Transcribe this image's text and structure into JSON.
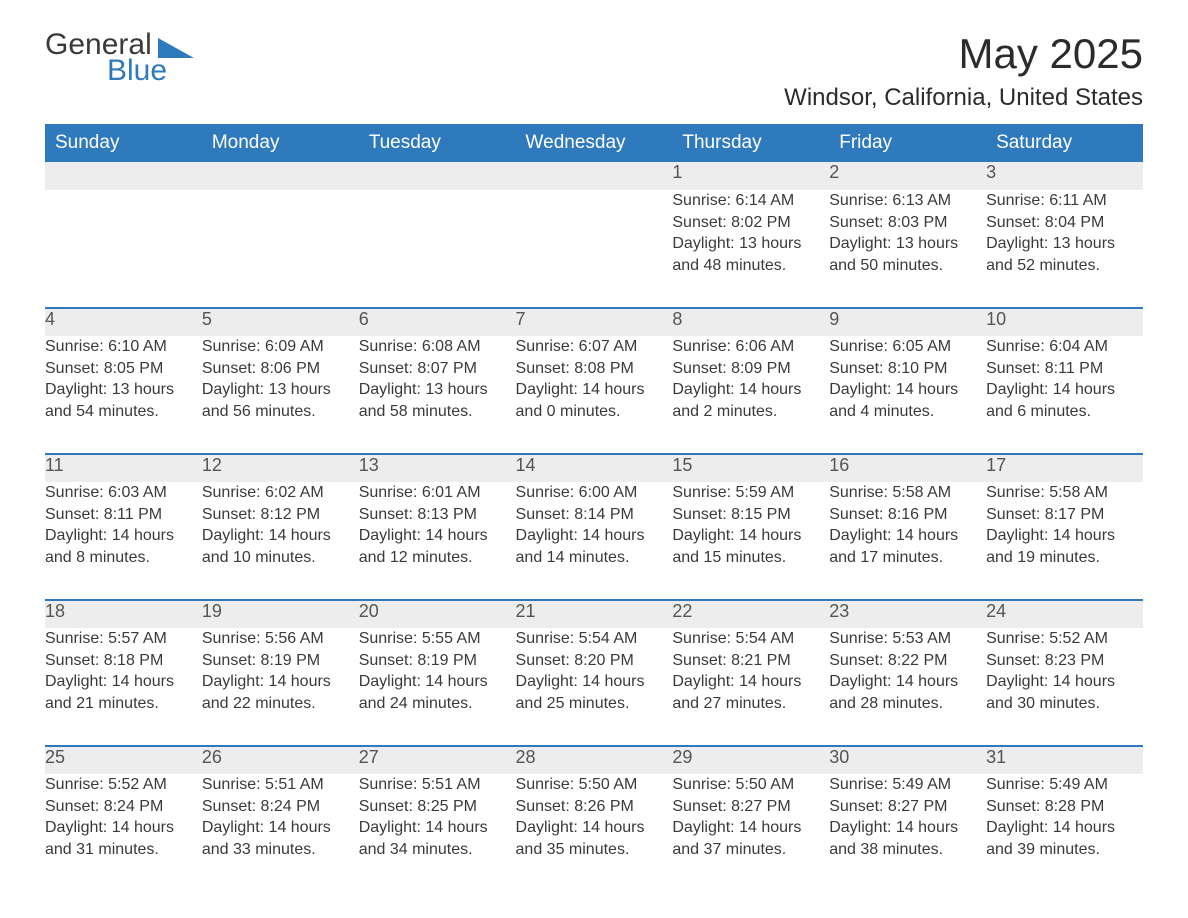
{
  "logo": {
    "text1": "General",
    "text2": "Blue"
  },
  "title": {
    "month": "May 2025",
    "location": "Windsor, California, United States"
  },
  "colors": {
    "header_bg": "#2f79bd",
    "header_text": "#ffffff",
    "daynum_bg": "#ededed",
    "row_border": "#2f79bd",
    "body_text": "#3a3a3a",
    "page_bg": "#ffffff"
  },
  "typography": {
    "title_fontsize": 42,
    "subtitle_fontsize": 24,
    "header_cell_fontsize": 19,
    "daynum_fontsize": 18,
    "body_fontsize": 16,
    "font_family": "Arial"
  },
  "weekdays": [
    "Sunday",
    "Monday",
    "Tuesday",
    "Wednesday",
    "Thursday",
    "Friday",
    "Saturday"
  ],
  "weeks": [
    [
      {
        "empty": true
      },
      {
        "empty": true
      },
      {
        "empty": true
      },
      {
        "empty": true
      },
      {
        "day": "1",
        "sunrise": "Sunrise: 6:14 AM",
        "sunset": "Sunset: 8:02 PM",
        "dl1": "Daylight: 13 hours",
        "dl2": "and 48 minutes."
      },
      {
        "day": "2",
        "sunrise": "Sunrise: 6:13 AM",
        "sunset": "Sunset: 8:03 PM",
        "dl1": "Daylight: 13 hours",
        "dl2": "and 50 minutes."
      },
      {
        "day": "3",
        "sunrise": "Sunrise: 6:11 AM",
        "sunset": "Sunset: 8:04 PM",
        "dl1": "Daylight: 13 hours",
        "dl2": "and 52 minutes."
      }
    ],
    [
      {
        "day": "4",
        "sunrise": "Sunrise: 6:10 AM",
        "sunset": "Sunset: 8:05 PM",
        "dl1": "Daylight: 13 hours",
        "dl2": "and 54 minutes."
      },
      {
        "day": "5",
        "sunrise": "Sunrise: 6:09 AM",
        "sunset": "Sunset: 8:06 PM",
        "dl1": "Daylight: 13 hours",
        "dl2": "and 56 minutes."
      },
      {
        "day": "6",
        "sunrise": "Sunrise: 6:08 AM",
        "sunset": "Sunset: 8:07 PM",
        "dl1": "Daylight: 13 hours",
        "dl2": "and 58 minutes."
      },
      {
        "day": "7",
        "sunrise": "Sunrise: 6:07 AM",
        "sunset": "Sunset: 8:08 PM",
        "dl1": "Daylight: 14 hours",
        "dl2": "and 0 minutes."
      },
      {
        "day": "8",
        "sunrise": "Sunrise: 6:06 AM",
        "sunset": "Sunset: 8:09 PM",
        "dl1": "Daylight: 14 hours",
        "dl2": "and 2 minutes."
      },
      {
        "day": "9",
        "sunrise": "Sunrise: 6:05 AM",
        "sunset": "Sunset: 8:10 PM",
        "dl1": "Daylight: 14 hours",
        "dl2": "and 4 minutes."
      },
      {
        "day": "10",
        "sunrise": "Sunrise: 6:04 AM",
        "sunset": "Sunset: 8:11 PM",
        "dl1": "Daylight: 14 hours",
        "dl2": "and 6 minutes."
      }
    ],
    [
      {
        "day": "11",
        "sunrise": "Sunrise: 6:03 AM",
        "sunset": "Sunset: 8:11 PM",
        "dl1": "Daylight: 14 hours",
        "dl2": "and 8 minutes."
      },
      {
        "day": "12",
        "sunrise": "Sunrise: 6:02 AM",
        "sunset": "Sunset: 8:12 PM",
        "dl1": "Daylight: 14 hours",
        "dl2": "and 10 minutes."
      },
      {
        "day": "13",
        "sunrise": "Sunrise: 6:01 AM",
        "sunset": "Sunset: 8:13 PM",
        "dl1": "Daylight: 14 hours",
        "dl2": "and 12 minutes."
      },
      {
        "day": "14",
        "sunrise": "Sunrise: 6:00 AM",
        "sunset": "Sunset: 8:14 PM",
        "dl1": "Daylight: 14 hours",
        "dl2": "and 14 minutes."
      },
      {
        "day": "15",
        "sunrise": "Sunrise: 5:59 AM",
        "sunset": "Sunset: 8:15 PM",
        "dl1": "Daylight: 14 hours",
        "dl2": "and 15 minutes."
      },
      {
        "day": "16",
        "sunrise": "Sunrise: 5:58 AM",
        "sunset": "Sunset: 8:16 PM",
        "dl1": "Daylight: 14 hours",
        "dl2": "and 17 minutes."
      },
      {
        "day": "17",
        "sunrise": "Sunrise: 5:58 AM",
        "sunset": "Sunset: 8:17 PM",
        "dl1": "Daylight: 14 hours",
        "dl2": "and 19 minutes."
      }
    ],
    [
      {
        "day": "18",
        "sunrise": "Sunrise: 5:57 AM",
        "sunset": "Sunset: 8:18 PM",
        "dl1": "Daylight: 14 hours",
        "dl2": "and 21 minutes."
      },
      {
        "day": "19",
        "sunrise": "Sunrise: 5:56 AM",
        "sunset": "Sunset: 8:19 PM",
        "dl1": "Daylight: 14 hours",
        "dl2": "and 22 minutes."
      },
      {
        "day": "20",
        "sunrise": "Sunrise: 5:55 AM",
        "sunset": "Sunset: 8:19 PM",
        "dl1": "Daylight: 14 hours",
        "dl2": "and 24 minutes."
      },
      {
        "day": "21",
        "sunrise": "Sunrise: 5:54 AM",
        "sunset": "Sunset: 8:20 PM",
        "dl1": "Daylight: 14 hours",
        "dl2": "and 25 minutes."
      },
      {
        "day": "22",
        "sunrise": "Sunrise: 5:54 AM",
        "sunset": "Sunset: 8:21 PM",
        "dl1": "Daylight: 14 hours",
        "dl2": "and 27 minutes."
      },
      {
        "day": "23",
        "sunrise": "Sunrise: 5:53 AM",
        "sunset": "Sunset: 8:22 PM",
        "dl1": "Daylight: 14 hours",
        "dl2": "and 28 minutes."
      },
      {
        "day": "24",
        "sunrise": "Sunrise: 5:52 AM",
        "sunset": "Sunset: 8:23 PM",
        "dl1": "Daylight: 14 hours",
        "dl2": "and 30 minutes."
      }
    ],
    [
      {
        "day": "25",
        "sunrise": "Sunrise: 5:52 AM",
        "sunset": "Sunset: 8:24 PM",
        "dl1": "Daylight: 14 hours",
        "dl2": "and 31 minutes."
      },
      {
        "day": "26",
        "sunrise": "Sunrise: 5:51 AM",
        "sunset": "Sunset: 8:24 PM",
        "dl1": "Daylight: 14 hours",
        "dl2": "and 33 minutes."
      },
      {
        "day": "27",
        "sunrise": "Sunrise: 5:51 AM",
        "sunset": "Sunset: 8:25 PM",
        "dl1": "Daylight: 14 hours",
        "dl2": "and 34 minutes."
      },
      {
        "day": "28",
        "sunrise": "Sunrise: 5:50 AM",
        "sunset": "Sunset: 8:26 PM",
        "dl1": "Daylight: 14 hours",
        "dl2": "and 35 minutes."
      },
      {
        "day": "29",
        "sunrise": "Sunrise: 5:50 AM",
        "sunset": "Sunset: 8:27 PM",
        "dl1": "Daylight: 14 hours",
        "dl2": "and 37 minutes."
      },
      {
        "day": "30",
        "sunrise": "Sunrise: 5:49 AM",
        "sunset": "Sunset: 8:27 PM",
        "dl1": "Daylight: 14 hours",
        "dl2": "and 38 minutes."
      },
      {
        "day": "31",
        "sunrise": "Sunrise: 5:49 AM",
        "sunset": "Sunset: 8:28 PM",
        "dl1": "Daylight: 14 hours",
        "dl2": "and 39 minutes."
      }
    ]
  ]
}
